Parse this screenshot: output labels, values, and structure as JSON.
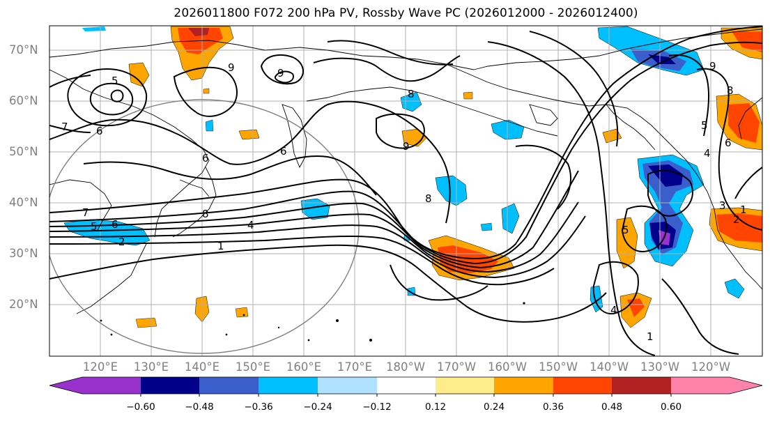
{
  "title": "2026011800 F072 200 hPa PV, Rossby Wave PC (2026012000 - 2026012400)",
  "lat_labels": [
    "70°N",
    "60°N",
    "50°N",
    "40°N",
    "30°N",
    "20°N"
  ],
  "lon_labels": [
    "120°E",
    "130°E",
    "140°E",
    "150°E",
    "160°E",
    "170°E",
    "180°W",
    "170°W",
    "160°W",
    "150°W",
    "140°W",
    "130°W",
    "120°W"
  ],
  "colorbar": {
    "tick_labels": [
      "−0.60",
      "−0.48",
      "−0.36",
      "−0.24",
      "−0.12",
      "0.12",
      "0.24",
      "0.36",
      "0.48",
      "0.60"
    ],
    "colors": [
      "#9932cc",
      "#00008b",
      "#3a5fcd",
      "#00bfff",
      "#b0e2ff",
      "#ffffff",
      "#ffec8b",
      "#ffa500",
      "#ff4500",
      "#b22222",
      "#ff82ab"
    ]
  },
  "contour_labels": [
    "5",
    "6",
    "7",
    "6",
    "9",
    "9",
    "6",
    "8",
    "9",
    "9",
    "8",
    "8",
    "6",
    "4",
    "5",
    "4",
    "1",
    "2",
    "5",
    "6",
    "7",
    "8",
    "3",
    "2",
    "1",
    "5",
    "4",
    "1"
  ]
}
